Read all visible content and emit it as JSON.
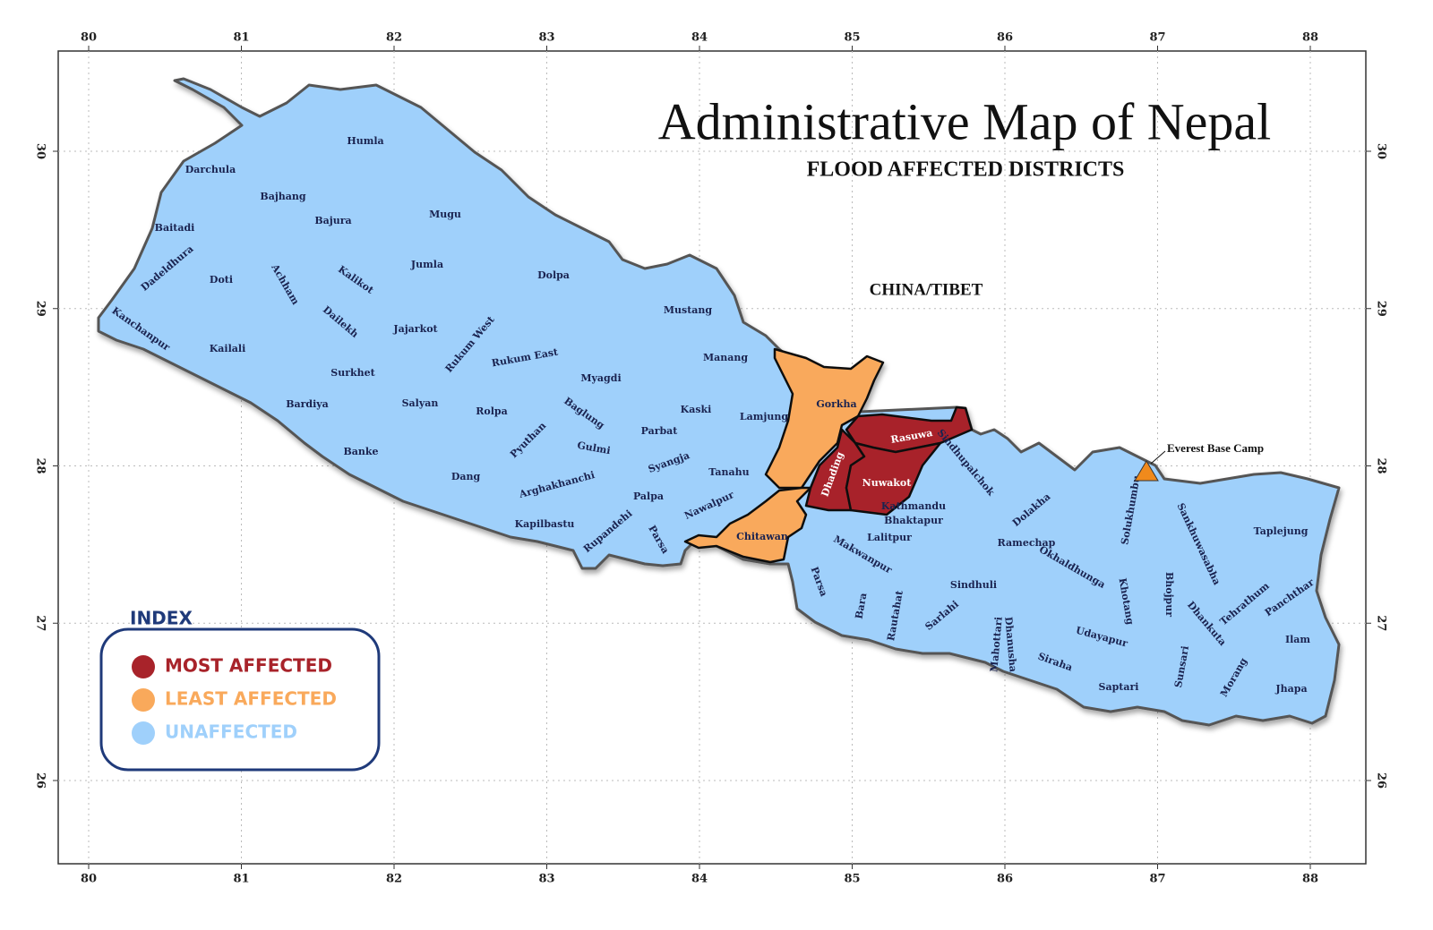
{
  "title": "Administrative Map of Nepal",
  "subtitle": "FLOOD AFFECTED DISTRICTS",
  "region_label": "CHINA/TIBET",
  "landmark": {
    "label": "Everest Base Camp"
  },
  "legend": {
    "title": "INDEX",
    "groups": [
      {
        "label": "MOST AFFECTED",
        "color": "#a8232a",
        "districts": [
          "Rasuwa",
          "Dhading",
          "Nuwakot"
        ]
      },
      {
        "label": "LEAST AFFECTED",
        "color": "#f9a95b",
        "districts": [
          "Gorkha",
          "Chitawan"
        ]
      },
      {
        "label": "UNAFFECTED",
        "color": "#9fd0fb",
        "districts": [
          "Humla",
          "Darchula",
          "Bajhang",
          "Baitadi",
          "Bajura",
          "Mugu",
          "Dadeldhura",
          "Doti",
          "Achham",
          "Kalikot",
          "Jumla",
          "Dolpa",
          "Dailekh",
          "Kanchanpur",
          "Jajarkot",
          "Rukum West",
          "Mustang",
          "Kailali",
          "Rukum East",
          "Manang",
          "Surkhet",
          "Myagdi",
          "Salyan",
          "Bardiya",
          "Rolpa",
          "Baglung",
          "Kaski",
          "Lamjung",
          "Parbat",
          "Pyuthan",
          "Gulmi",
          "Syangja",
          "Banke",
          "Tanahu",
          "Dang",
          "Arghakhanchi",
          "Palpa",
          "Nawalpur",
          "Kapilbastu",
          "Rupandehi",
          "Parsa",
          "Sindhupalchok",
          "Kathmandu",
          "Bhaktapur",
          "Lalitpur",
          "Dolakha",
          "Makwanpur",
          "Ramechap",
          "Okhaldhunga",
          "Solukhumbu",
          "Sankhuwasabha",
          "Taplejung",
          "Sindhuli",
          "Parsa",
          "Bara",
          "Rautahat",
          "Sarlahi",
          "Mahottari",
          "Dhanusha",
          "Siraha",
          "Udayapur",
          "Khotang",
          "Bhojpur",
          "Tehrathum",
          "Panchthar",
          "Dhankuta",
          "Ilam",
          "Saptari",
          "Sunsari",
          "Morang",
          "Jhapa"
        ]
      }
    ]
  },
  "axes": {
    "lon_ticks": [
      80,
      81,
      82,
      83,
      84,
      85,
      86,
      87,
      88
    ],
    "lat_ticks": [
      30,
      29,
      28,
      27,
      26
    ]
  }
}
